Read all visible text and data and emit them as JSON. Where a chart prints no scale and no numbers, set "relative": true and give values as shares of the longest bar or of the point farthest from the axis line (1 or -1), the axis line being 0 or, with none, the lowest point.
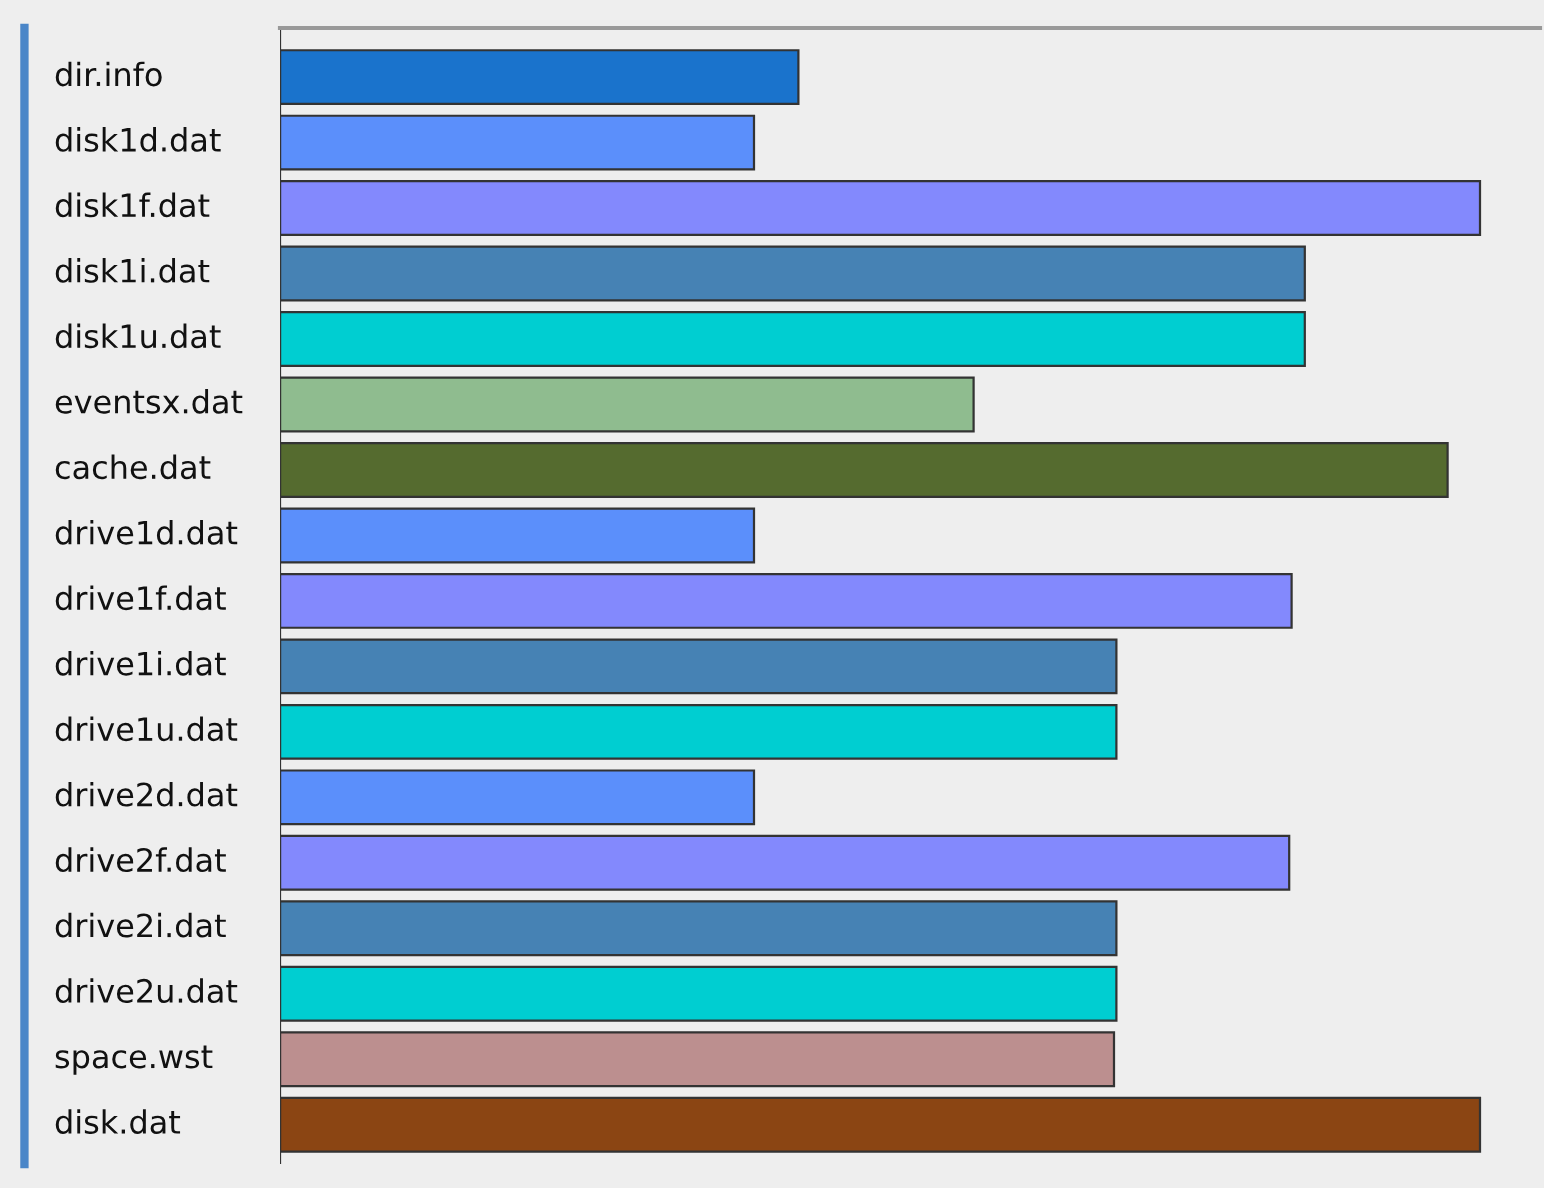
{
  "chart_data": {
    "type": "bar",
    "orientation": "horizontal",
    "relative": true,
    "categories": [
      "dir.info",
      "disk1d.dat",
      "disk1f.dat",
      "disk1i.dat",
      "disk1u.dat",
      "eventsx.dat",
      "cache.dat",
      "drive1d.dat",
      "drive1f.dat",
      "drive1i.dat",
      "drive1u.dat",
      "drive2d.dat",
      "drive2f.dat",
      "drive2i.dat",
      "drive2u.dat",
      "space.wst",
      "disk.dat"
    ],
    "values": [
      0.432,
      0.395,
      1,
      0.854,
      0.854,
      0.578,
      0.973,
      0.395,
      0.843,
      0.697,
      0.697,
      0.395,
      0.841,
      0.697,
      0.697,
      0.695,
      1
    ],
    "colors": [
      "#1a73cc",
      "#5b8ffb",
      "#8389fd",
      "#4682b4",
      "#00ced1",
      "#8fbc8f",
      "#556b2f",
      "#5b8ffb",
      "#8389fd",
      "#4682b4",
      "#00ced1",
      "#5b8ffb",
      "#8389fd",
      "#4682b4",
      "#00ced1",
      "#bc8f8f",
      "#8b4513"
    ],
    "legend": false
  }
}
